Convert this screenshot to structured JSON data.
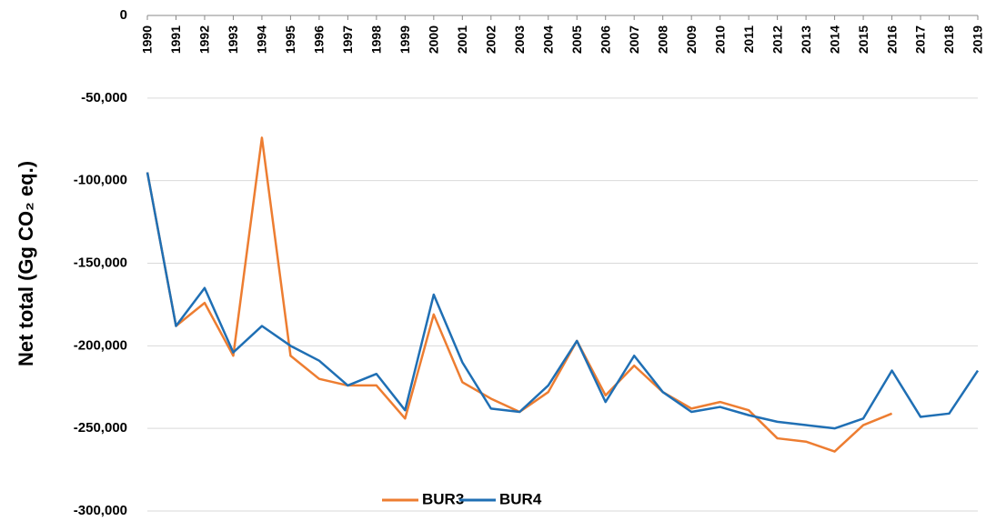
{
  "chart_data": {
    "type": "line",
    "ylabel": "Net total (Gg CO₂ eq.)",
    "categories": [
      "1990",
      "1991",
      "1992",
      "1993",
      "1994",
      "1995",
      "1996",
      "1997",
      "1998",
      "1999",
      "2000",
      "2001",
      "2002",
      "2003",
      "2004",
      "2005",
      "2006",
      "2007",
      "2008",
      "2009",
      "2010",
      "2011",
      "2012",
      "2013",
      "2014",
      "2015",
      "2016",
      "2017",
      "2018",
      "2019"
    ],
    "series": [
      {
        "name": "BUR3",
        "color": "#ed7d31",
        "values": [
          -95000,
          -188000,
          -174000,
          -206000,
          -74000,
          -206000,
          -220000,
          -224000,
          -224000,
          -244000,
          -181000,
          -222000,
          -232000,
          -240000,
          -228000,
          -197000,
          -230000,
          -212000,
          -228000,
          -238000,
          -234000,
          -239000,
          -256000,
          -258000,
          -264000,
          -248000,
          -241000,
          null,
          null,
          null
        ]
      },
      {
        "name": "BUR4",
        "color": "#1f6fb4",
        "values": [
          -95000,
          -188000,
          -165000,
          -204000,
          -188000,
          -200000,
          -209000,
          -224000,
          -217000,
          -239000,
          -169000,
          -210000,
          -238000,
          -240000,
          -224000,
          -197000,
          -234000,
          -206000,
          -228000,
          -240000,
          -237000,
          -242000,
          -246000,
          -248000,
          -250000,
          -244000,
          -215000,
          -243000,
          -241000,
          -215000
        ]
      }
    ],
    "ylim": [
      -300000,
      0
    ],
    "yticks": [
      0,
      {
        "value": -50000,
        "label": "-50,000"
      },
      {
        "value": -100000,
        "label": "-100,000"
      },
      {
        "value": -150000,
        "label": "-150,000"
      },
      {
        "value": -200000,
        "label": "-200,000"
      },
      {
        "value": -250000,
        "label": "-250,000"
      },
      {
        "value": -300000,
        "label": "-300,000"
      }
    ],
    "grid": true,
    "legend": "bottom"
  }
}
